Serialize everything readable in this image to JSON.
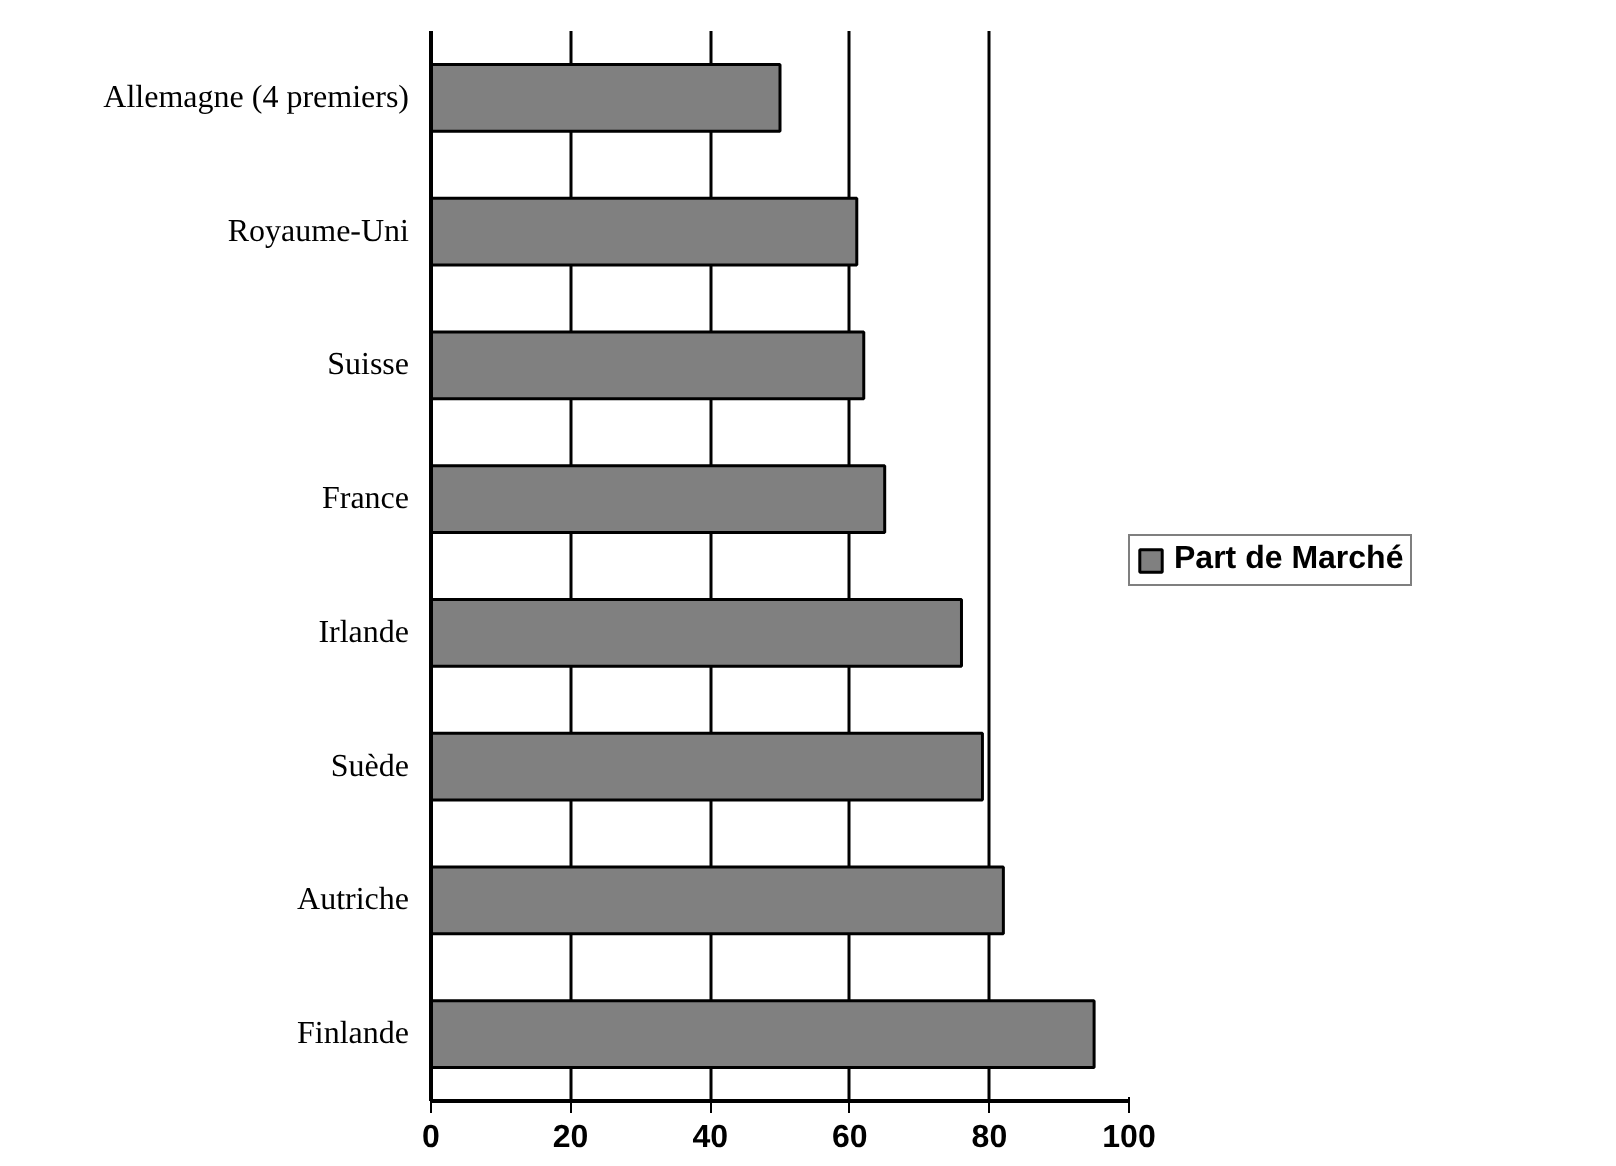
{
  "chart_data": {
    "type": "bar",
    "orientation": "horizontal",
    "categories": [
      "Allemagne (4 premiers)",
      "Royaume-Uni",
      "Suisse",
      "France",
      "Irlande",
      "Suède",
      "Autriche",
      "Finlande"
    ],
    "series": [
      {
        "name": "Part de Marché",
        "color": "#808080",
        "values": [
          50,
          61,
          62,
          65,
          76,
          79,
          82,
          95
        ]
      }
    ],
    "xlim": [
      0,
      100
    ],
    "xticks": [
      0,
      20,
      40,
      60,
      80,
      100
    ],
    "grid": "x",
    "legend": "right"
  }
}
